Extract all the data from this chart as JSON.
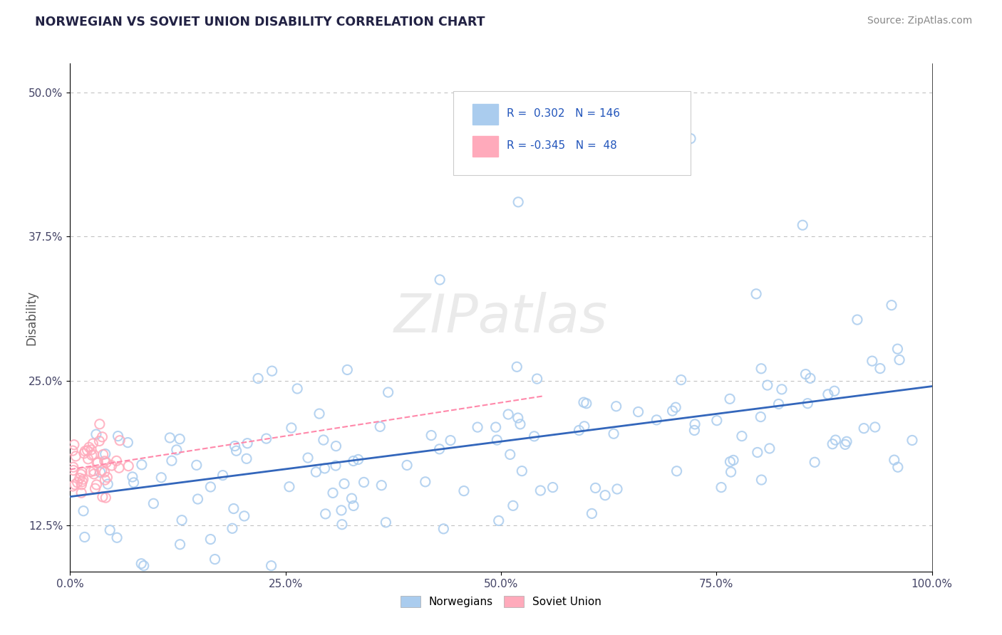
{
  "title": "NORWEGIAN VS SOVIET UNION DISABILITY CORRELATION CHART",
  "source_text": "Source: ZipAtlas.com",
  "ylabel": "Disability",
  "xlim": [
    0,
    1
  ],
  "ylim": [
    0.085,
    0.525
  ],
  "yticks": [
    0.125,
    0.25,
    0.375,
    0.5
  ],
  "ytick_labels": [
    "12.5%",
    "25.0%",
    "37.5%",
    "50.0%"
  ],
  "xticks": [
    0.0,
    0.25,
    0.5,
    0.75,
    1.0
  ],
  "xtick_labels": [
    "0.0%",
    "25.0%",
    "50.0%",
    "75.0%",
    "100.0%"
  ],
  "blue_scatter_color": "#AACCEE",
  "pink_scatter_color": "#FFAABB",
  "blue_line_color": "#3366BB",
  "pink_line_color": "#FF88AA",
  "r_blue": 0.302,
  "n_blue": 146,
  "r_pink": -0.345,
  "n_pink": 48,
  "legend_labels": [
    "Norwegians",
    "Soviet Union"
  ],
  "legend_patch_blue": "#AACCEE",
  "legend_patch_pink": "#FFAABB",
  "watermark_text": "ZIPatlas",
  "watermark_color": "#DDDDDD",
  "background_color": "#FFFFFF",
  "grid_color": "#BBBBBB",
  "title_color": "#222244",
  "tick_color": "#444466",
  "source_color": "#888888"
}
